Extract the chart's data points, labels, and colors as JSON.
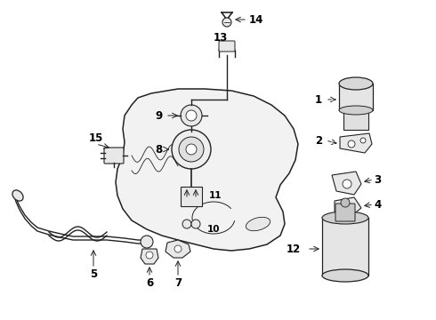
{
  "background_color": "#ffffff",
  "line_color": "#222222",
  "fig_width": 4.9,
  "fig_height": 3.6,
  "dpi": 100
}
